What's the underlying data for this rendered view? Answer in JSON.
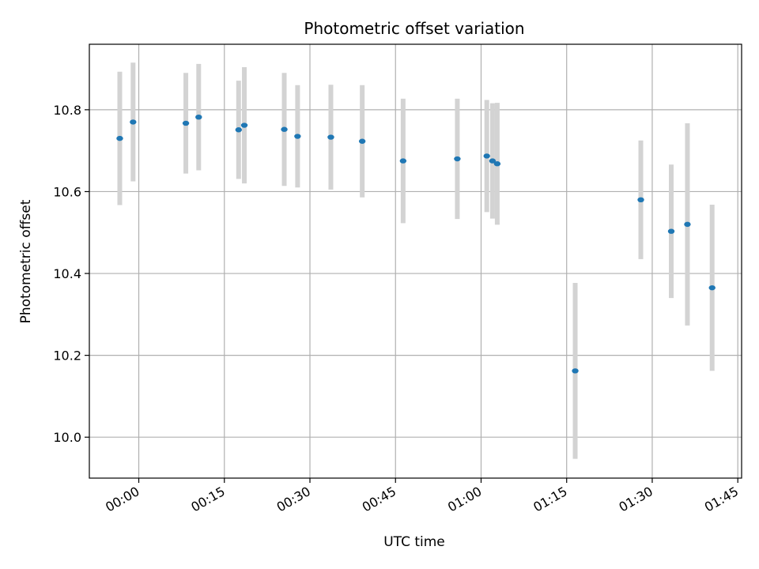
{
  "chart_data": {
    "type": "scatter",
    "title": "Photometric offset variation",
    "xlabel": "UTC time",
    "ylabel": "Photometric offset",
    "grid": true,
    "xlim": [
      "23:51:20",
      "01:45:40"
    ],
    "ylim": [
      9.9,
      10.96
    ],
    "xticks": [
      "00:00",
      "00:15",
      "00:30",
      "00:45",
      "01:00",
      "01:15",
      "01:30",
      "01:45"
    ],
    "yticks": [
      10.0,
      10.2,
      10.4,
      10.6,
      10.8
    ],
    "ytick_labels": [
      "10.0",
      "10.2",
      "10.4",
      "10.6",
      "10.8"
    ],
    "point_color": "#1f77b4",
    "errorbar_color": "#d3d3d3",
    "points": [
      {
        "x": "23:56:40",
        "y": 10.73,
        "yerr": 0.163
      },
      {
        "x": "23:59:00",
        "y": 10.77,
        "yerr": 0.145
      },
      {
        "x": "00:08:15",
        "y": 10.767,
        "yerr": 0.123
      },
      {
        "x": "00:10:30",
        "y": 10.782,
        "yerr": 0.13
      },
      {
        "x": "00:17:30",
        "y": 10.751,
        "yerr": 0.12
      },
      {
        "x": "00:18:30",
        "y": 10.762,
        "yerr": 0.142
      },
      {
        "x": "00:25:30",
        "y": 10.752,
        "yerr": 0.138
      },
      {
        "x": "00:27:50",
        "y": 10.735,
        "yerr": 0.125
      },
      {
        "x": "00:33:40",
        "y": 10.733,
        "yerr": 0.128
      },
      {
        "x": "00:39:10",
        "y": 10.723,
        "yerr": 0.137
      },
      {
        "x": "00:46:20",
        "y": 10.675,
        "yerr": 0.152
      },
      {
        "x": "00:55:50",
        "y": 10.68,
        "yerr": 0.147
      },
      {
        "x": "01:01:00",
        "y": 10.687,
        "yerr": 0.137
      },
      {
        "x": "01:02:00",
        "y": 10.675,
        "yerr": 0.141
      },
      {
        "x": "01:02:50",
        "y": 10.668,
        "yerr": 0.149
      },
      {
        "x": "01:16:30",
        "y": 10.162,
        "yerr": 0.215
      },
      {
        "x": "01:28:00",
        "y": 10.58,
        "yerr": 0.145
      },
      {
        "x": "01:33:20",
        "y": 10.503,
        "yerr": 0.163
      },
      {
        "x": "01:36:10",
        "y": 10.52,
        "yerr": 0.247
      },
      {
        "x": "01:40:30",
        "y": 10.365,
        "yerr": 0.203
      }
    ]
  }
}
